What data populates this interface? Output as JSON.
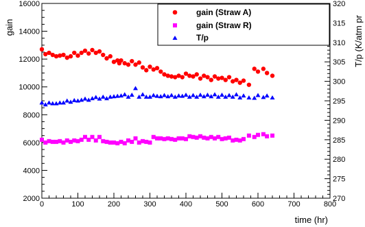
{
  "chart_data": {
    "type": "scatter",
    "title": "",
    "xlabel": "time (hr)",
    "ylabel": "gain",
    "y2label": "T/p (K/atm pr",
    "xlim": [
      0,
      800
    ],
    "ylim": [
      2000,
      16000
    ],
    "y2lim": [
      270,
      320
    ],
    "xticks": [
      0,
      100,
      200,
      300,
      400,
      500,
      600,
      700,
      800
    ],
    "yticks": [
      2000,
      4000,
      6000,
      8000,
      10000,
      12000,
      14000,
      16000
    ],
    "y2ticks": [
      270,
      275,
      280,
      285,
      290,
      295,
      300,
      305,
      310,
      315,
      320
    ],
    "grid": false,
    "legend_position": "top-right",
    "series": [
      {
        "name": "gain (Straw A)",
        "axis": "left",
        "marker": "circle",
        "color": "#ff0000",
        "x": [
          0,
          10,
          20,
          30,
          40,
          50,
          60,
          70,
          80,
          90,
          100,
          110,
          120,
          130,
          140,
          150,
          160,
          170,
          180,
          190,
          200,
          210,
          215,
          220,
          230,
          240,
          250,
          260,
          270,
          280,
          290,
          300,
          310,
          320,
          330,
          340,
          350,
          360,
          370,
          380,
          390,
          400,
          410,
          420,
          430,
          440,
          450,
          460,
          470,
          480,
          490,
          500,
          510,
          520,
          530,
          540,
          550,
          560,
          575,
          590,
          600,
          615,
          625,
          640
        ],
        "y": [
          12700,
          12350,
          12450,
          12300,
          12200,
          12250,
          12300,
          12100,
          12200,
          12450,
          12250,
          12450,
          12600,
          12400,
          12650,
          12450,
          12550,
          12300,
          12050,
          12200,
          11800,
          11900,
          11700,
          11900,
          11700,
          11600,
          11850,
          11600,
          11750,
          11400,
          11200,
          11450,
          11250,
          11350,
          11100,
          10900,
          10800,
          10750,
          10700,
          10800,
          10700,
          10950,
          10800,
          10750,
          10900,
          10600,
          10800,
          10700,
          10500,
          10750,
          10600,
          10650,
          10500,
          10700,
          10400,
          10500,
          10300,
          10450,
          10150,
          11300,
          11100,
          11300,
          11000,
          10800
        ]
      },
      {
        "name": "gain (Straw R)",
        "axis": "left",
        "marker": "square",
        "color": "#ff00ff",
        "x": [
          0,
          10,
          20,
          30,
          40,
          50,
          60,
          70,
          80,
          90,
          100,
          110,
          120,
          130,
          140,
          150,
          160,
          170,
          180,
          190,
          200,
          210,
          220,
          230,
          240,
          250,
          260,
          270,
          280,
          290,
          300,
          310,
          320,
          330,
          340,
          350,
          360,
          370,
          380,
          390,
          400,
          410,
          420,
          430,
          440,
          450,
          460,
          470,
          480,
          490,
          500,
          510,
          520,
          530,
          540,
          550,
          560,
          575,
          590,
          600,
          615,
          625,
          640
        ],
        "y": [
          6200,
          6000,
          6100,
          6050,
          6050,
          6100,
          6000,
          6150,
          6050,
          6150,
          6100,
          6200,
          6400,
          6200,
          6400,
          6150,
          6400,
          6100,
          6050,
          6000,
          6000,
          5950,
          6050,
          5950,
          6150,
          6050,
          6300,
          6000,
          6100,
          6050,
          6000,
          6400,
          6300,
          6300,
          6250,
          6300,
          6250,
          6200,
          6300,
          6300,
          6250,
          6450,
          6400,
          6350,
          6450,
          6350,
          6300,
          6400,
          6300,
          6400,
          6250,
          6300,
          6350,
          6150,
          6200,
          6150,
          6250,
          6500,
          6400,
          6550,
          6600,
          6450,
          6500
        ]
      },
      {
        "name": "T/p",
        "axis": "right",
        "marker": "triangle",
        "color": "#0000ff",
        "x": [
          0,
          10,
          20,
          30,
          40,
          50,
          60,
          70,
          80,
          90,
          100,
          110,
          120,
          130,
          140,
          150,
          160,
          170,
          180,
          190,
          200,
          210,
          220,
          230,
          240,
          250,
          260,
          270,
          280,
          290,
          300,
          310,
          320,
          330,
          340,
          350,
          360,
          370,
          380,
          390,
          400,
          410,
          420,
          430,
          440,
          450,
          460,
          470,
          480,
          490,
          500,
          510,
          520,
          530,
          540,
          550,
          560,
          575,
          590,
          600,
          615,
          625,
          640
        ],
        "y": [
          294.5,
          294.0,
          294.5,
          294.3,
          294.3,
          294.5,
          294.5,
          295.0,
          294.7,
          295.1,
          295.0,
          295.2,
          295.5,
          295.2,
          295.6,
          295.9,
          295.5,
          296.0,
          295.6,
          296.0,
          296.1,
          296.2,
          296.3,
          296.6,
          296.0,
          296.5,
          298.2,
          296.0,
          296.6,
          296.0,
          296.0,
          296.4,
          296.2,
          296.1,
          296.4,
          296.1,
          296.4,
          296.0,
          296.3,
          296.2,
          296.5,
          296.0,
          296.4,
          296.0,
          296.5,
          296.1,
          296.5,
          296.1,
          296.6,
          296.0,
          296.5,
          296.0,
          296.4,
          296.0,
          296.6,
          295.8,
          296.3,
          295.8,
          295.7,
          296.4,
          295.9,
          296.3,
          295.8
        ]
      }
    ]
  }
}
